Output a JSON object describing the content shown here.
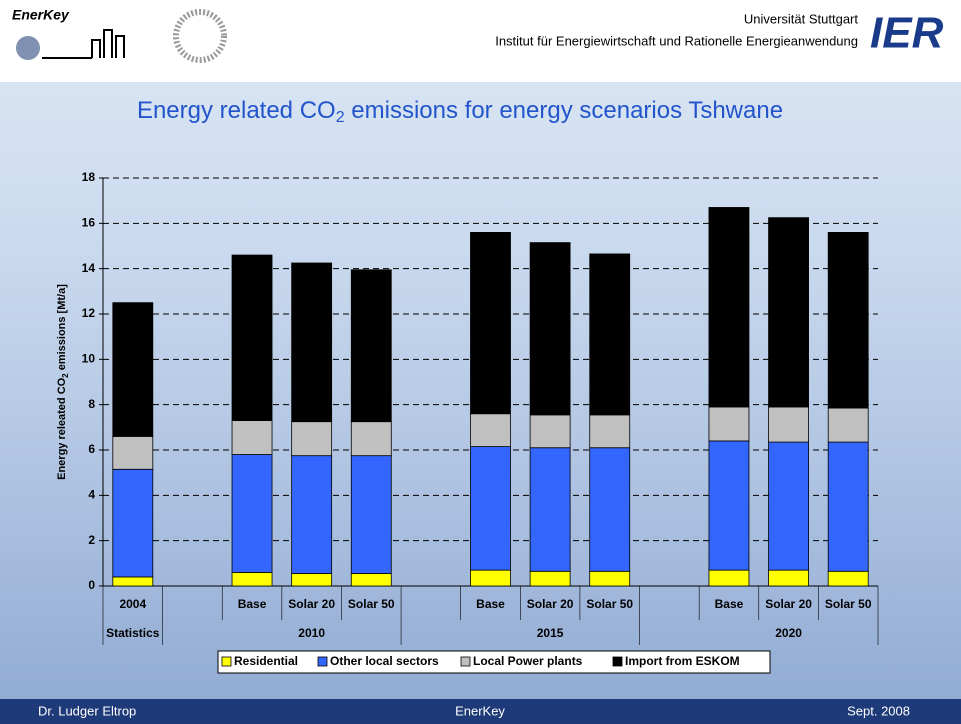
{
  "header": {
    "logo_text": "EnerKey",
    "university": "Universität Stuttgart",
    "institute": "Institut für Energiewirtschaft und Rationelle Energieanwendung",
    "ier": "IER"
  },
  "chart_data": {
    "type": "stacked-bar",
    "title_parts": [
      "Energy related CO",
      "2",
      " emissions for energy scenarios Tshwane"
    ],
    "y_label_parts": [
      "Energy releated CO",
      "2",
      " emissions [Mt/a]"
    ],
    "categories": [
      "2004",
      null,
      "Base",
      "Solar 20",
      "Solar 50",
      null,
      "Base",
      "Solar 20",
      "Solar 50",
      null,
      "Base",
      "Solar 20",
      "Solar 50"
    ],
    "groups": [
      "Statistics",
      "2010",
      "2015",
      "2020"
    ],
    "series": [
      {
        "name": "Residential",
        "color": "#ffff00",
        "values": [
          0.4,
          null,
          0.6,
          0.55,
          0.55,
          null,
          0.7,
          0.65,
          0.65,
          null,
          0.7,
          0.7,
          0.65
        ]
      },
      {
        "name": "Other local sectors",
        "color": "#3366ff",
        "values": [
          4.75,
          null,
          5.2,
          5.2,
          5.2,
          null,
          5.45,
          5.45,
          5.45,
          null,
          5.7,
          5.65,
          5.7
        ]
      },
      {
        "name": "Local Power plants",
        "color": "#c0c0c0",
        "values": [
          1.45,
          null,
          1.5,
          1.5,
          1.5,
          null,
          1.45,
          1.45,
          1.45,
          null,
          1.5,
          1.55,
          1.5
        ]
      },
      {
        "name": "Import from ESKOM",
        "color": "#000000",
        "values": [
          5.9,
          null,
          7.3,
          7.0,
          6.7,
          null,
          8.0,
          7.6,
          7.1,
          null,
          8.8,
          8.35,
          7.75
        ]
      }
    ],
    "ylim": [
      0,
      18
    ],
    "yticks": [
      0,
      2,
      4,
      6,
      8,
      10,
      12,
      14,
      16,
      18
    ],
    "grid": true
  },
  "footer": {
    "left": "Dr. Ludger Eltrop",
    "center": "EnerKey",
    "right": "Sept. 2008"
  }
}
